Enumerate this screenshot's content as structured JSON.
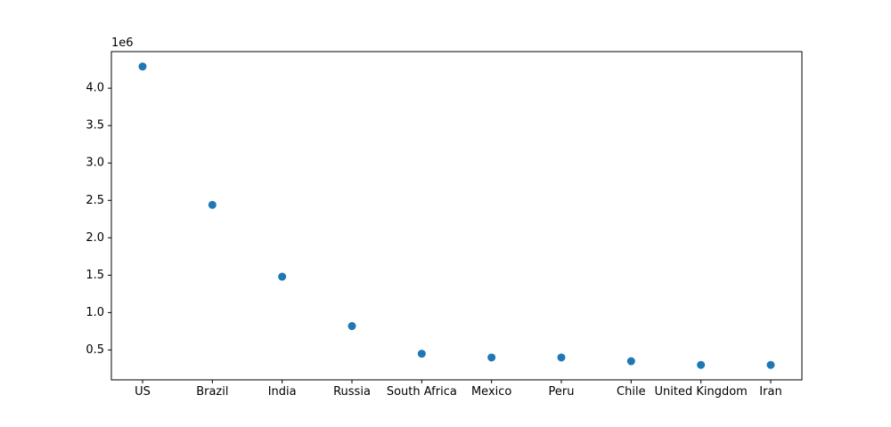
{
  "chart_data": {
    "type": "scatter",
    "title": "",
    "xlabel": "",
    "ylabel": "",
    "y_scale_label": "1e6",
    "categories": [
      "US",
      "Brazil",
      "India",
      "Russia",
      "South Africa",
      "Mexico",
      "Peru",
      "Chile",
      "United Kingdom",
      "Iran"
    ],
    "values": [
      4290000,
      2440000,
      1480000,
      820000,
      450000,
      400000,
      400000,
      350000,
      300000,
      300000
    ],
    "y_ticks": [
      {
        "value": 500000,
        "label": "0.5"
      },
      {
        "value": 1000000,
        "label": "1.0"
      },
      {
        "value": 1500000,
        "label": "1.5"
      },
      {
        "value": 2000000,
        "label": "2.0"
      },
      {
        "value": 2500000,
        "label": "2.5"
      },
      {
        "value": 3000000,
        "label": "3.0"
      },
      {
        "value": 3500000,
        "label": "3.5"
      },
      {
        "value": 4000000,
        "label": "4.0"
      }
    ],
    "ylim": [
      100500,
      4489500
    ],
    "grid": false,
    "marker_color": "#1f77b4"
  }
}
